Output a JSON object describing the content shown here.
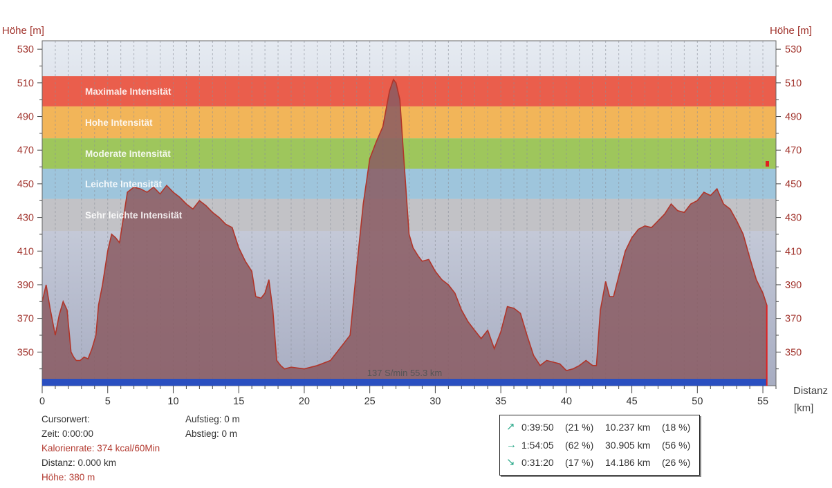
{
  "axis": {
    "left_title": "Höhe [m]",
    "right_title": "Höhe [m]",
    "x_title_1": "Distanz",
    "x_title_2": "[km]"
  },
  "chart_data": {
    "type": "area",
    "x": [
      0,
      0.3,
      0.6,
      1,
      1.3,
      1.6,
      1.9,
      2.2,
      2.4,
      2.6,
      2.9,
      3.2,
      3.5,
      3.8,
      4.1,
      4.3,
      4.6,
      5,
      5.3,
      5.6,
      5.9,
      6.1,
      6.5,
      7,
      7.5,
      8,
      8.5,
      9,
      9.5,
      10,
      10.5,
      11,
      11.5,
      12,
      12.5,
      13,
      13.5,
      14,
      14.5,
      15,
      15.5,
      16,
      16.3,
      16.7,
      17,
      17.3,
      17.6,
      17.9,
      18.2,
      18.5,
      19,
      20,
      21,
      22,
      23,
      23.5,
      24,
      24.5,
      25,
      25.5,
      26,
      26.5,
      26.8,
      27,
      27.3,
      27.6,
      28,
      28.3,
      28.7,
      29,
      29.5,
      30,
      30.5,
      31,
      31.5,
      32,
      32.5,
      33,
      33.5,
      34,
      34.5,
      35,
      35.5,
      36,
      36.5,
      37,
      37.5,
      38,
      38.5,
      39,
      39.5,
      40,
      40.5,
      41,
      41.5,
      42,
      42.3,
      42.6,
      43,
      43.3,
      43.6,
      44,
      44.5,
      45,
      45.5,
      46,
      46.5,
      47,
      47.5,
      48,
      48.5,
      49,
      49.5,
      50,
      50.5,
      51,
      51.5,
      52,
      52.5,
      53,
      53.5,
      54,
      54.5,
      55,
      55.3
    ],
    "y": [
      380,
      390,
      376,
      360,
      372,
      380,
      375,
      350,
      347,
      345,
      345,
      347,
      346,
      352,
      360,
      378,
      390,
      410,
      420,
      418,
      415,
      425,
      445,
      448,
      447,
      445,
      448,
      444,
      449,
      445,
      442,
      438,
      435,
      440,
      437,
      433,
      430,
      426,
      424,
      412,
      404,
      398,
      383,
      382,
      385,
      393,
      375,
      345,
      342,
      340,
      341,
      340,
      342,
      345,
      355,
      360,
      400,
      438,
      465,
      475,
      484,
      505,
      512,
      510,
      500,
      465,
      420,
      412,
      407,
      404,
      405,
      398,
      393,
      390,
      385,
      375,
      368,
      363,
      358,
      363,
      352,
      362,
      377,
      376,
      373,
      360,
      348,
      342,
      345,
      344,
      343,
      339,
      340,
      342,
      345,
      342,
      342,
      375,
      392,
      383,
      383,
      395,
      410,
      418,
      423,
      425,
      424,
      428,
      432,
      438,
      434,
      433,
      438,
      440,
      445,
      443,
      447,
      438,
      435,
      428,
      420,
      406,
      393,
      385,
      378
    ],
    "xlim": [
      0,
      56
    ],
    "ylim": [
      330,
      535
    ],
    "x_ticks": [
      0,
      5,
      10,
      15,
      20,
      25,
      30,
      35,
      40,
      45,
      50,
      55
    ],
    "y_ticks": [
      350,
      370,
      390,
      410,
      430,
      450,
      470,
      490,
      510,
      530
    ],
    "line_color": "#b0352a",
    "fill_color": "#8a5a62",
    "zones": [
      {
        "label": "Maximale Intensität",
        "from": 496,
        "to": 514,
        "color": "#ea5e4c"
      },
      {
        "label": "Hohe Intensität",
        "from": 477,
        "to": 496,
        "color": "#f2b559"
      },
      {
        "label": "Moderate Intensität",
        "from": 459,
        "to": 477,
        "color": "#9ec65c"
      },
      {
        "label": "Leichte Intensität",
        "from": 441,
        "to": 459,
        "color": "#9ec5dc"
      },
      {
        "label": "Sehr leichte Intensität",
        "from": 422,
        "to": 441,
        "color": "#c2c2c6"
      }
    ],
    "bottom_label": "137 S/min 55.3 km"
  },
  "info": {
    "cursor": "Cursorwert:",
    "time": "Zeit: 0:00:00",
    "calorie": "Kalorienrate: 374 kcal/60Min",
    "distance": "Distanz: 0.000 km",
    "height": "Höhe:  380 m",
    "ascent": "Aufstieg: 0 m",
    "descent": "Abstieg: 0 m"
  },
  "stats": [
    {
      "icon": "arrow-up-right-icon",
      "glyph": "↗",
      "time": "0:39:50",
      "time_pct": "(21 %)",
      "dist": "10.237 km",
      "dist_pct": "(18 %)"
    },
    {
      "icon": "arrow-right-icon",
      "glyph": "→",
      "time": "1:54:05",
      "time_pct": "(62 %)",
      "dist": "30.905 km",
      "dist_pct": "(56 %)"
    },
    {
      "icon": "arrow-down-right-icon",
      "glyph": "↘",
      "time": "0:31:20",
      "time_pct": "(17 %)",
      "dist": "14.186 km",
      "dist_pct": "(26 %)"
    }
  ]
}
